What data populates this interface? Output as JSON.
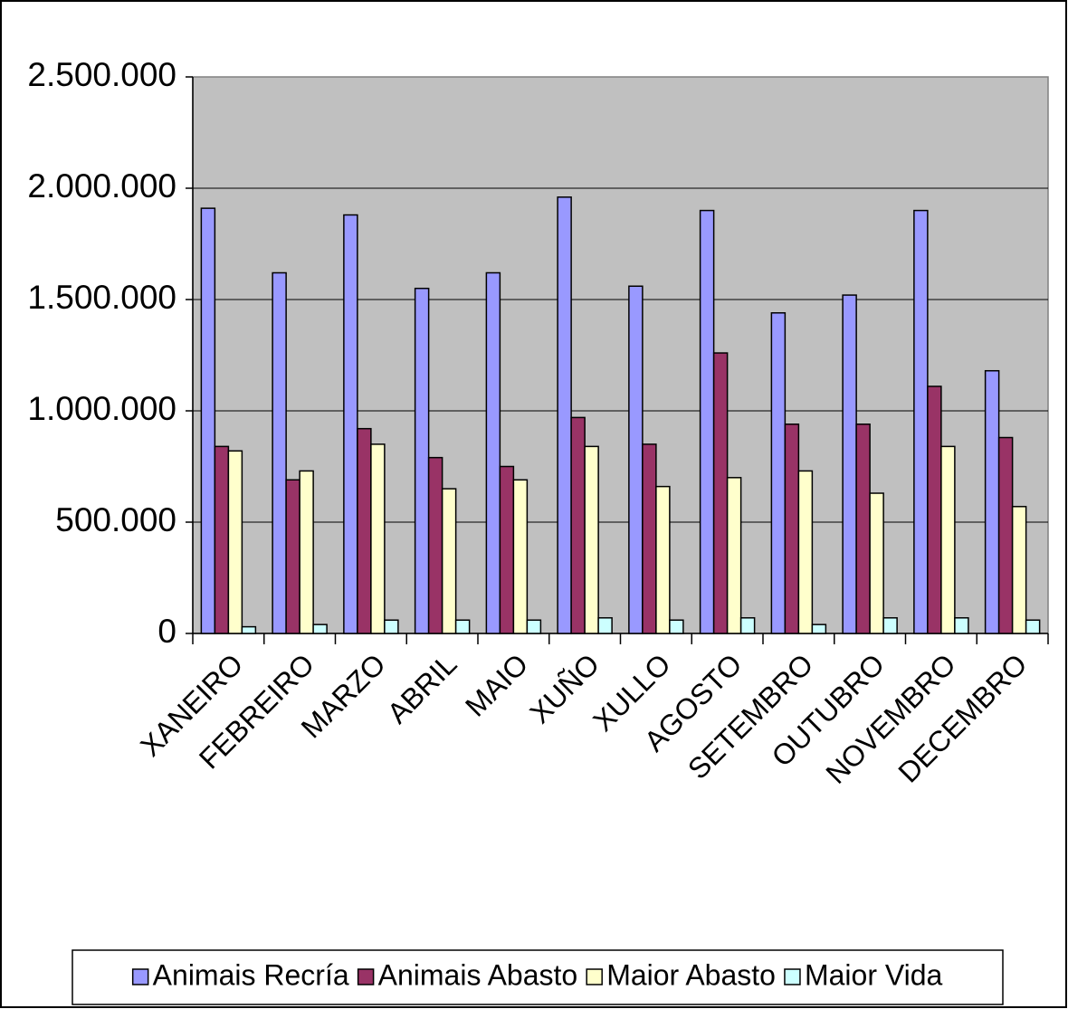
{
  "chart_data": {
    "type": "bar",
    "categories": [
      "XANEIRO",
      "FEBREIRO",
      "MARZO",
      "ABRIL",
      "MAIO",
      "XUÑO",
      "XULLO",
      "AGOSTO",
      "SETEMBRO",
      "OUTUBRO",
      "NOVEMBRO",
      "DECEMBRO"
    ],
    "series": [
      {
        "name": "Animais Recría",
        "color": "#9999ff",
        "values": [
          1910000,
          1620000,
          1880000,
          1550000,
          1620000,
          1960000,
          1560000,
          1900000,
          1440000,
          1520000,
          1900000,
          1180000
        ]
      },
      {
        "name": "Animais Abasto",
        "color": "#993366",
        "values": [
          840000,
          690000,
          920000,
          790000,
          750000,
          970000,
          850000,
          1260000,
          940000,
          940000,
          1110000,
          880000
        ]
      },
      {
        "name": "Maior Abasto",
        "color": "#ffffcc",
        "values": [
          820000,
          730000,
          850000,
          650000,
          690000,
          840000,
          660000,
          700000,
          730000,
          630000,
          840000,
          570000
        ]
      },
      {
        "name": "Maior Vida",
        "color": "#ccffff",
        "values": [
          30000,
          40000,
          60000,
          60000,
          60000,
          70000,
          60000,
          70000,
          40000,
          70000,
          70000,
          60000
        ]
      }
    ],
    "ylim": [
      0,
      2500000
    ],
    "yticks": [
      {
        "value": 0,
        "label": "0"
      },
      {
        "value": 500000,
        "label": "500.000"
      },
      {
        "value": 1000000,
        "label": "1.000.000"
      },
      {
        "value": 1500000,
        "label": "1.500.000"
      },
      {
        "value": 2000000,
        "label": "2.000.000"
      },
      {
        "value": 2500000,
        "label": "2.500.000"
      }
    ],
    "grid": true,
    "plot_background": "#c0c0c0",
    "legend": "bottom"
  }
}
